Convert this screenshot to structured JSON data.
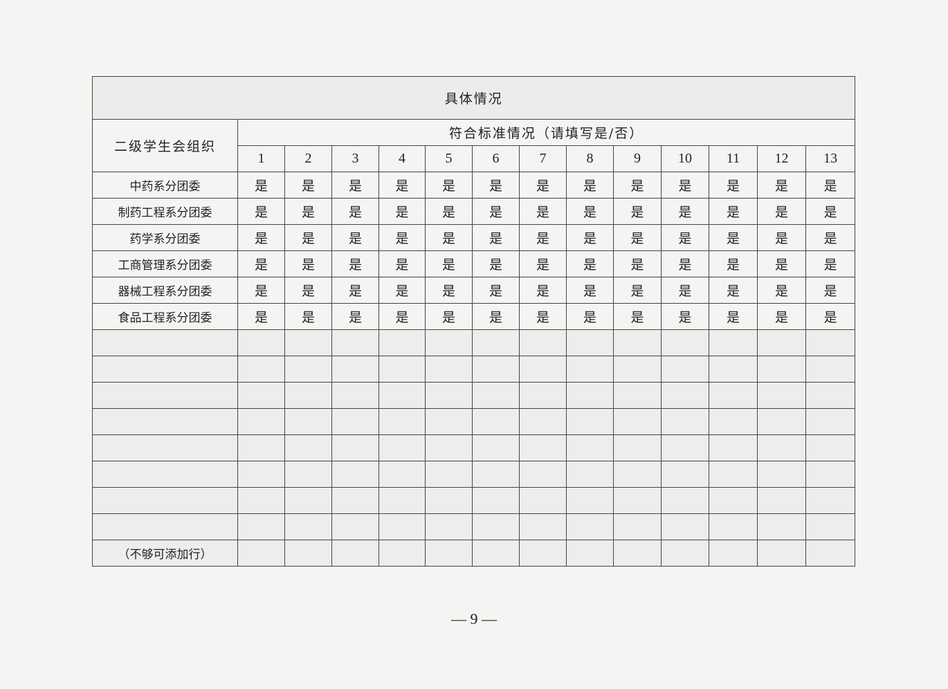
{
  "table": {
    "title": "具体情况",
    "org_header": "二级学生会组织",
    "criteria_header": "符合标准情况（请填写是/否）",
    "criteria_numbers": [
      "1",
      "2",
      "3",
      "4",
      "5",
      "6",
      "7",
      "8",
      "9",
      "10",
      "11",
      "12",
      "13"
    ],
    "rows": [
      {
        "org": "中药系分团委",
        "values": [
          "是",
          "是",
          "是",
          "是",
          "是",
          "是",
          "是",
          "是",
          "是",
          "是",
          "是",
          "是",
          "是"
        ]
      },
      {
        "org": "制药工程系分团委",
        "values": [
          "是",
          "是",
          "是",
          "是",
          "是",
          "是",
          "是",
          "是",
          "是",
          "是",
          "是",
          "是",
          "是"
        ]
      },
      {
        "org": "药学系分团委",
        "values": [
          "是",
          "是",
          "是",
          "是",
          "是",
          "是",
          "是",
          "是",
          "是",
          "是",
          "是",
          "是",
          "是"
        ]
      },
      {
        "org": "工商管理系分团委",
        "values": [
          "是",
          "是",
          "是",
          "是",
          "是",
          "是",
          "是",
          "是",
          "是",
          "是",
          "是",
          "是",
          "是"
        ]
      },
      {
        "org": "器械工程系分团委",
        "values": [
          "是",
          "是",
          "是",
          "是",
          "是",
          "是",
          "是",
          "是",
          "是",
          "是",
          "是",
          "是",
          "是"
        ]
      },
      {
        "org": "食品工程系分团委",
        "values": [
          "是",
          "是",
          "是",
          "是",
          "是",
          "是",
          "是",
          "是",
          "是",
          "是",
          "是",
          "是",
          "是"
        ]
      },
      {
        "org": "",
        "values": [
          "",
          "",
          "",
          "",
          "",
          "",
          "",
          "",
          "",
          "",
          "",
          "",
          ""
        ]
      },
      {
        "org": "",
        "values": [
          "",
          "",
          "",
          "",
          "",
          "",
          "",
          "",
          "",
          "",
          "",
          "",
          ""
        ]
      },
      {
        "org": "",
        "values": [
          "",
          "",
          "",
          "",
          "",
          "",
          "",
          "",
          "",
          "",
          "",
          "",
          ""
        ]
      },
      {
        "org": "",
        "values": [
          "",
          "",
          "",
          "",
          "",
          "",
          "",
          "",
          "",
          "",
          "",
          "",
          ""
        ]
      },
      {
        "org": "",
        "values": [
          "",
          "",
          "",
          "",
          "",
          "",
          "",
          "",
          "",
          "",
          "",
          "",
          ""
        ]
      },
      {
        "org": "",
        "values": [
          "",
          "",
          "",
          "",
          "",
          "",
          "",
          "",
          "",
          "",
          "",
          "",
          ""
        ]
      },
      {
        "org": "",
        "values": [
          "",
          "",
          "",
          "",
          "",
          "",
          "",
          "",
          "",
          "",
          "",
          "",
          ""
        ]
      },
      {
        "org": "",
        "values": [
          "",
          "",
          "",
          "",
          "",
          "",
          "",
          "",
          "",
          "",
          "",
          "",
          ""
        ]
      },
      {
        "org": "（不够可添加行）",
        "values": [
          "",
          "",
          "",
          "",
          "",
          "",
          "",
          "",
          "",
          "",
          "",
          "",
          ""
        ]
      }
    ]
  },
  "page_number": "— 9 —"
}
